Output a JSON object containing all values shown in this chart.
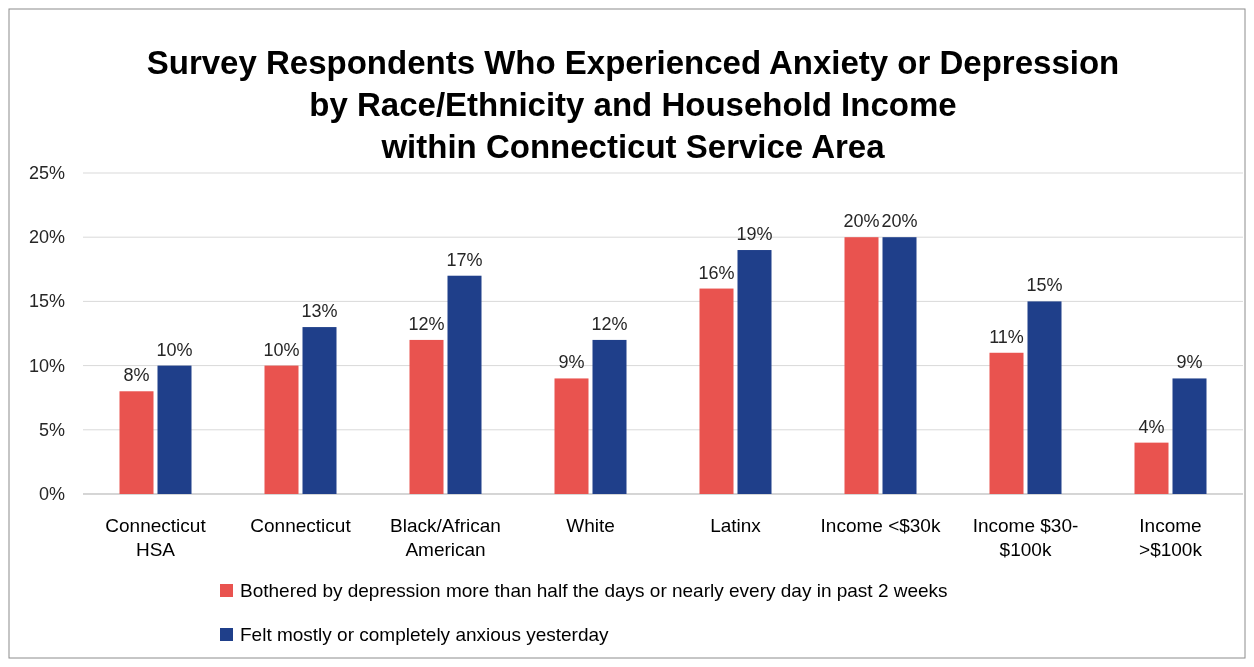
{
  "chart_data": {
    "type": "bar",
    "title": "Survey Respondents Who Experienced Anxiety or Depression\nby Race/Ethnicity and Household Income\nwithin Connecticut Service Area",
    "categories": [
      "Connecticut HSA",
      "Connecticut",
      "Black/African American",
      "White",
      "Latinx",
      "Income <$30k",
      "Income $30-$100k",
      "Income >$100k"
    ],
    "series": [
      {
        "name": "Bothered by depression more than half the days or nearly every day in past 2 weeks",
        "color": "#e9534f",
        "values": [
          8,
          10,
          12,
          9,
          16,
          20,
          11,
          4
        ],
        "value_labels": [
          "8%",
          "10%",
          "12%",
          "9%",
          "16%",
          "20%",
          "11%",
          "4%"
        ]
      },
      {
        "name": "Felt mostly or completely anxious yesterday",
        "color": "#1f3f8a",
        "values": [
          10,
          13,
          17,
          12,
          19,
          20,
          15,
          9
        ],
        "value_labels": [
          "10%",
          "13%",
          "17%",
          "12%",
          "19%",
          "20%",
          "15%",
          "9%"
        ]
      }
    ],
    "ylim": [
      0,
      25
    ],
    "yticks": [
      {
        "value": 0,
        "label": "0%"
      },
      {
        "value": 5,
        "label": "5%"
      },
      {
        "value": 10,
        "label": "10%"
      },
      {
        "value": 15,
        "label": "15%"
      },
      {
        "value": 20,
        "label": "20%"
      },
      {
        "value": 25,
        "label": "25%"
      }
    ],
    "grid": "y",
    "legend": "bottom"
  }
}
